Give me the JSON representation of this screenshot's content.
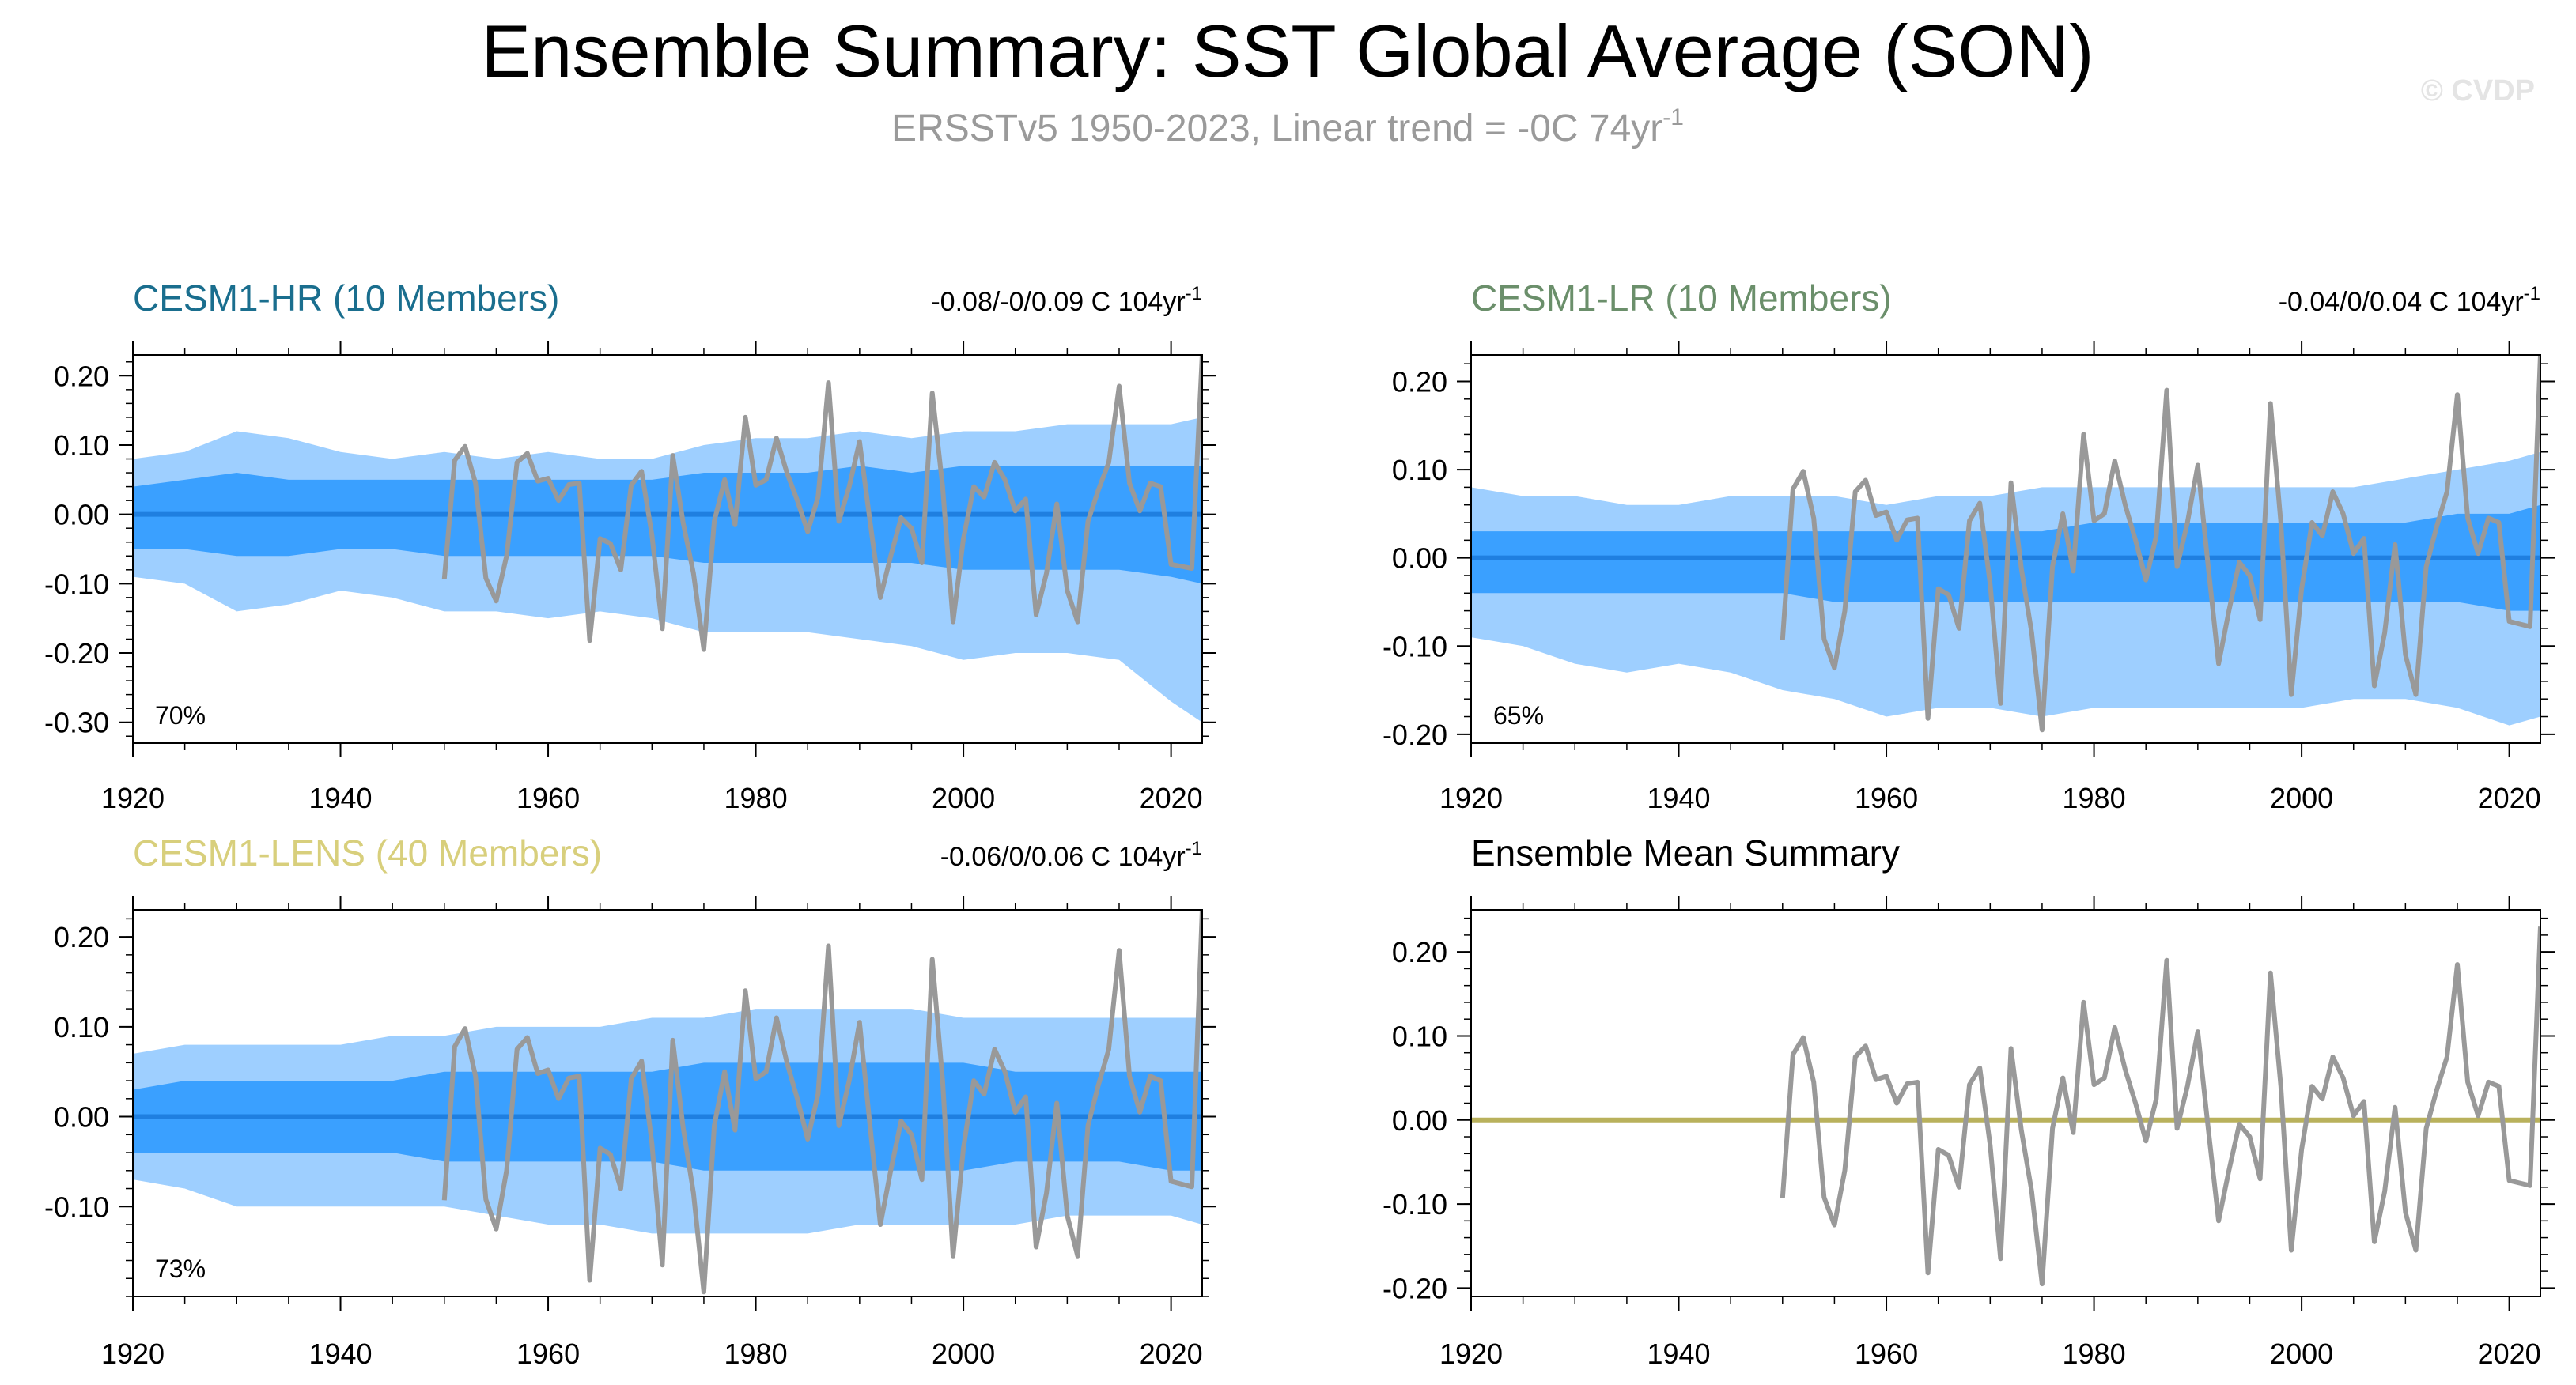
{
  "figure": {
    "title": "Ensemble Summary: SST Global Average (SON)",
    "subtitle_main": "ERSSTv5 1950-2023, Linear trend = -0C 74yr",
    "subtitle_sup": "-1",
    "watermark": "© CVDP"
  },
  "colors": {
    "outer_band": "#9ecfff",
    "inner_band": "#3aa0ff",
    "mean_line": "#1f7fe0",
    "obs_line": "#999999",
    "ensemble_mean_line": "#b9b15c",
    "hr_title": "#1a6e8e",
    "lr_title": "#6b8f6b",
    "lens_title": "#d8cf7c",
    "summary_title": "#000000"
  },
  "chart_data": [
    {
      "id": "hr",
      "type": "area",
      "title": "CESM1-HR (10 Members)",
      "range_text": "-0.08/-0/0.09 C 104yr",
      "range_sup": "-1",
      "percent_label": "70%",
      "xlim": [
        1920,
        2023
      ],
      "ylim": [
        -0.33,
        0.23
      ],
      "xticks": [
        1920,
        1940,
        1960,
        1980,
        2000,
        2020
      ],
      "xtick_labels": [
        "1920",
        "1940",
        "1960",
        "1980",
        "2000",
        "2020"
      ],
      "yticks": [
        0.2,
        0.1,
        0.0,
        -0.1,
        -0.2,
        -0.3
      ],
      "ytick_labels": [
        "0.20",
        "0.10",
        "0.00",
        "-0.10",
        "-0.20",
        "-0.30"
      ],
      "yminor_step": 0.02,
      "ens_mean": 0.0,
      "bands": {
        "x": [
          1920,
          1925,
          1930,
          1935,
          1940,
          1945,
          1950,
          1955,
          1960,
          1965,
          1970,
          1975,
          1980,
          1985,
          1990,
          1995,
          2000,
          2005,
          2010,
          2015,
          2020,
          2023
        ],
        "outer_upper": [
          0.08,
          0.09,
          0.12,
          0.11,
          0.09,
          0.08,
          0.09,
          0.08,
          0.09,
          0.08,
          0.08,
          0.1,
          0.11,
          0.11,
          0.12,
          0.11,
          0.12,
          0.12,
          0.13,
          0.13,
          0.13,
          0.14
        ],
        "inner_upper": [
          0.04,
          0.05,
          0.06,
          0.05,
          0.05,
          0.05,
          0.05,
          0.05,
          0.05,
          0.05,
          0.05,
          0.06,
          0.06,
          0.06,
          0.07,
          0.06,
          0.07,
          0.07,
          0.07,
          0.07,
          0.07,
          0.07
        ],
        "inner_lower": [
          -0.05,
          -0.05,
          -0.06,
          -0.06,
          -0.05,
          -0.05,
          -0.06,
          -0.06,
          -0.06,
          -0.06,
          -0.06,
          -0.07,
          -0.07,
          -0.07,
          -0.07,
          -0.07,
          -0.08,
          -0.08,
          -0.08,
          -0.08,
          -0.09,
          -0.1
        ],
        "outer_lower": [
          -0.09,
          -0.1,
          -0.14,
          -0.13,
          -0.11,
          -0.12,
          -0.14,
          -0.14,
          -0.15,
          -0.14,
          -0.15,
          -0.17,
          -0.17,
          -0.17,
          -0.18,
          -0.19,
          -0.21,
          -0.2,
          -0.2,
          -0.21,
          -0.27,
          -0.3
        ]
      }
    },
    {
      "id": "lr",
      "type": "area",
      "title": "CESM1-LR (10 Members)",
      "range_text": "-0.04/0/0.04 C 104yr",
      "range_sup": "-1",
      "percent_label": "65%",
      "xlim": [
        1920,
        2023
      ],
      "ylim": [
        -0.21,
        0.23
      ],
      "xticks": [
        1920,
        1940,
        1960,
        1980,
        2000,
        2020
      ],
      "xtick_labels": [
        "1920",
        "1940",
        "1960",
        "1980",
        "2000",
        "2020"
      ],
      "yticks": [
        0.2,
        0.1,
        0.0,
        -0.1,
        -0.2
      ],
      "ytick_labels": [
        "0.20",
        "0.10",
        "0.00",
        "-0.10",
        "-0.20"
      ],
      "yminor_step": 0.02,
      "ens_mean": 0.0,
      "bands": {
        "x": [
          1920,
          1925,
          1930,
          1935,
          1940,
          1945,
          1950,
          1955,
          1960,
          1965,
          1970,
          1975,
          1980,
          1985,
          1990,
          1995,
          2000,
          2005,
          2010,
          2015,
          2020,
          2023
        ],
        "outer_upper": [
          0.08,
          0.07,
          0.07,
          0.06,
          0.06,
          0.07,
          0.07,
          0.07,
          0.06,
          0.07,
          0.07,
          0.08,
          0.08,
          0.08,
          0.08,
          0.08,
          0.08,
          0.08,
          0.09,
          0.1,
          0.11,
          0.12
        ],
        "inner_upper": [
          0.03,
          0.03,
          0.03,
          0.03,
          0.03,
          0.03,
          0.03,
          0.03,
          0.03,
          0.03,
          0.03,
          0.03,
          0.04,
          0.04,
          0.04,
          0.04,
          0.04,
          0.04,
          0.04,
          0.05,
          0.05,
          0.06
        ],
        "inner_lower": [
          -0.04,
          -0.04,
          -0.04,
          -0.04,
          -0.04,
          -0.04,
          -0.04,
          -0.05,
          -0.05,
          -0.05,
          -0.05,
          -0.05,
          -0.05,
          -0.05,
          -0.05,
          -0.05,
          -0.05,
          -0.05,
          -0.05,
          -0.05,
          -0.06,
          -0.06
        ],
        "outer_lower": [
          -0.09,
          -0.1,
          -0.12,
          -0.13,
          -0.12,
          -0.13,
          -0.15,
          -0.16,
          -0.18,
          -0.17,
          -0.17,
          -0.18,
          -0.17,
          -0.17,
          -0.17,
          -0.17,
          -0.17,
          -0.16,
          -0.16,
          -0.17,
          -0.19,
          -0.18
        ]
      }
    },
    {
      "id": "lens",
      "type": "area",
      "title": "CESM1-LENS (40 Members)",
      "range_text": "-0.06/0/0.06 C 104yr",
      "range_sup": "-1",
      "percent_label": "73%",
      "xlim": [
        1920,
        2023
      ],
      "ylim": [
        -0.2,
        0.23
      ],
      "xticks": [
        1920,
        1940,
        1960,
        1980,
        2000,
        2020
      ],
      "xtick_labels": [
        "1920",
        "1940",
        "1960",
        "1980",
        "2000",
        "2020"
      ],
      "yticks": [
        0.2,
        0.1,
        0.0,
        -0.1
      ],
      "ytick_labels": [
        "0.20",
        "0.10",
        "0.00",
        "-0.10"
      ],
      "yminor_step": 0.02,
      "ens_mean": 0.0,
      "bands": {
        "x": [
          1920,
          1925,
          1930,
          1935,
          1940,
          1945,
          1950,
          1955,
          1960,
          1965,
          1970,
          1975,
          1980,
          1985,
          1990,
          1995,
          2000,
          2005,
          2010,
          2015,
          2020,
          2023
        ],
        "outer_upper": [
          0.07,
          0.08,
          0.08,
          0.08,
          0.08,
          0.09,
          0.09,
          0.1,
          0.1,
          0.1,
          0.11,
          0.11,
          0.12,
          0.12,
          0.12,
          0.12,
          0.11,
          0.11,
          0.11,
          0.11,
          0.11,
          0.11
        ],
        "inner_upper": [
          0.03,
          0.04,
          0.04,
          0.04,
          0.04,
          0.04,
          0.05,
          0.05,
          0.05,
          0.05,
          0.05,
          0.06,
          0.06,
          0.06,
          0.06,
          0.06,
          0.06,
          0.05,
          0.05,
          0.05,
          0.05,
          0.05
        ],
        "inner_lower": [
          -0.04,
          -0.04,
          -0.04,
          -0.04,
          -0.04,
          -0.04,
          -0.05,
          -0.05,
          -0.05,
          -0.05,
          -0.05,
          -0.06,
          -0.06,
          -0.06,
          -0.06,
          -0.06,
          -0.06,
          -0.05,
          -0.05,
          -0.05,
          -0.06,
          -0.06
        ],
        "outer_lower": [
          -0.07,
          -0.08,
          -0.1,
          -0.1,
          -0.1,
          -0.1,
          -0.1,
          -0.11,
          -0.12,
          -0.12,
          -0.13,
          -0.13,
          -0.13,
          -0.13,
          -0.12,
          -0.12,
          -0.12,
          -0.12,
          -0.11,
          -0.11,
          -0.11,
          -0.12
        ]
      }
    },
    {
      "id": "summary",
      "type": "line",
      "title": "Ensemble Mean Summary",
      "range_text": "",
      "range_sup": "",
      "percent_label": "",
      "xlim": [
        1920,
        2023
      ],
      "ylim": [
        -0.21,
        0.25
      ],
      "xticks": [
        1920,
        1940,
        1960,
        1980,
        2000,
        2020
      ],
      "xtick_labels": [
        "1920",
        "1940",
        "1960",
        "1980",
        "2000",
        "2020"
      ],
      "yticks": [
        0.2,
        0.1,
        0.0,
        -0.1,
        -0.2
      ],
      "ytick_labels": [
        "0.20",
        "0.10",
        "0.00",
        "-0.10",
        "-0.20"
      ],
      "yminor_step": 0.02,
      "ens_mean": 0.0,
      "bands": null
    }
  ],
  "observations": {
    "name": "ERSSTv5",
    "x": [
      1950,
      1951,
      1952,
      1953,
      1954,
      1955,
      1956,
      1957,
      1958,
      1959,
      1960,
      1961,
      1962,
      1963,
      1964,
      1965,
      1966,
      1967,
      1968,
      1969,
      1970,
      1971,
      1972,
      1973,
      1974,
      1975,
      1976,
      1977,
      1978,
      1979,
      1980,
      1981,
      1982,
      1983,
      1984,
      1985,
      1986,
      1987,
      1988,
      1989,
      1990,
      1991,
      1992,
      1993,
      1994,
      1995,
      1996,
      1997,
      1998,
      1999,
      2000,
      2001,
      2002,
      2003,
      2004,
      2005,
      2006,
      2007,
      2008,
      2009,
      2010,
      2011,
      2012,
      2013,
      2014,
      2015,
      2016,
      2017,
      2018,
      2019,
      2020,
      2021,
      2022,
      2023
    ],
    "y": [
      -0.093,
      0.078,
      0.098,
      0.045,
      -0.092,
      -0.125,
      -0.06,
      0.075,
      0.088,
      0.048,
      0.052,
      0.02,
      0.043,
      0.045,
      -0.182,
      -0.035,
      -0.042,
      -0.08,
      0.042,
      0.062,
      -0.03,
      -0.165,
      0.085,
      -0.012,
      -0.085,
      -0.195,
      -0.01,
      0.05,
      -0.015,
      0.14,
      0.042,
      0.05,
      0.11,
      0.06,
      0.02,
      -0.025,
      0.025,
      0.19,
      -0.01,
      0.04,
      0.105,
      -0.01,
      -0.12,
      -0.06,
      -0.005,
      -0.02,
      -0.07,
      0.175,
      0.04,
      -0.155,
      -0.035,
      0.04,
      0.025,
      0.075,
      0.05,
      0.005,
      0.022,
      -0.145,
      -0.085,
      0.015,
      -0.11,
      -0.155,
      -0.01,
      0.035,
      0.075,
      0.185,
      0.045,
      0.005,
      0.045,
      0.04,
      -0.072,
      -0.075,
      -0.078,
      0.23
    ]
  }
}
